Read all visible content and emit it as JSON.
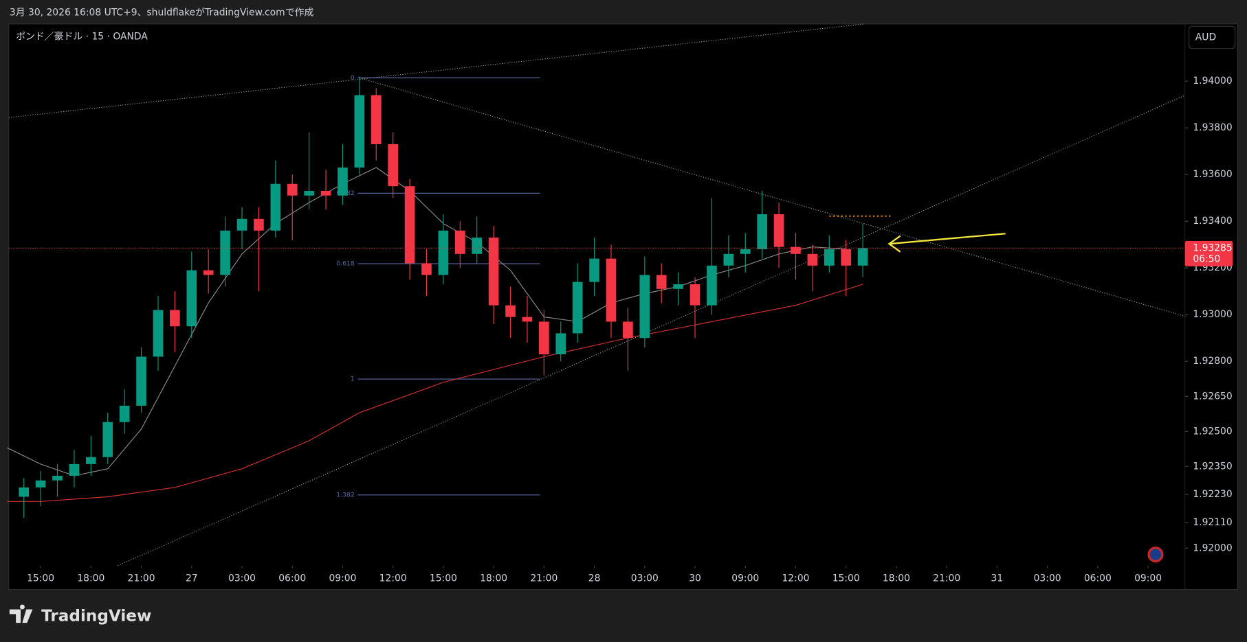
{
  "header": {
    "caption": "3月 30, 2026 16:08 UTC+9、shuldflakeがTradingView.comで作成"
  },
  "footer": {
    "logo": "TradingView"
  },
  "chart_data": {
    "type": "candlestick",
    "title": "ポンド／豪ドル · 15 · OANDA",
    "currency": "AUD",
    "up_color": "#089981",
    "down_color": "#f23645",
    "x": [
      -1,
      0,
      1,
      2,
      3,
      4,
      5,
      6,
      7,
      8,
      9,
      10,
      11,
      12,
      13,
      14,
      15,
      16,
      17,
      18,
      19,
      20,
      21,
      22,
      23,
      24,
      25,
      26,
      27,
      28,
      29,
      30,
      31,
      32,
      33,
      34,
      35,
      36,
      37,
      38,
      39,
      40,
      41,
      42,
      43,
      44,
      45,
      46,
      47,
      48,
      49
    ],
    "open": [
      1.9222,
      1.9226,
      1.9229,
      1.9231,
      1.9236,
      1.9239,
      1.9254,
      1.9261,
      1.9282,
      1.9302,
      1.9295,
      1.9319,
      1.9317,
      1.9336,
      1.9341,
      1.9336,
      1.9356,
      1.9351,
      1.9353,
      1.9351,
      1.9363,
      1.9394,
      1.9373,
      1.9355,
      1.9322,
      1.9317,
      1.9336,
      1.9326,
      1.9333,
      1.9304,
      1.9299,
      1.9297,
      1.9283,
      1.9292,
      1.9314,
      1.9324,
      1.9297,
      1.929,
      1.9317,
      1.9311,
      1.9313,
      1.9304,
      1.9321,
      1.9326,
      1.9328,
      1.9343,
      1.9329,
      1.9326,
      1.9321,
      1.9328,
      1.9321
    ],
    "high": [
      1.923,
      1.9233,
      1.9236,
      1.9242,
      1.9248,
      1.9258,
      1.9268,
      1.9286,
      1.9308,
      1.931,
      1.9327,
      1.9328,
      1.9342,
      1.9346,
      1.9346,
      1.9366,
      1.936,
      1.9378,
      1.9362,
      1.9373,
      1.9402,
      1.9397,
      1.9378,
      1.9358,
      1.9328,
      1.9343,
      1.934,
      1.9342,
      1.9338,
      1.9312,
      1.9308,
      1.9302,
      1.9297,
      1.9322,
      1.9333,
      1.933,
      1.9303,
      1.9325,
      1.9322,
      1.9318,
      1.9316,
      1.935,
      1.9334,
      1.9335,
      1.9353,
      1.9348,
      1.9335,
      1.933,
      1.9334,
      1.9332,
      1.9339
    ],
    "low": [
      1.9213,
      1.9218,
      1.9222,
      1.9226,
      1.9231,
      1.9236,
      1.9249,
      1.9258,
      1.9276,
      1.9284,
      1.929,
      1.9309,
      1.9312,
      1.9328,
      1.931,
      1.9333,
      1.9332,
      1.9345,
      1.9345,
      1.9347,
      1.936,
      1.9366,
      1.935,
      1.9315,
      1.9308,
      1.9313,
      1.932,
      1.9322,
      1.9296,
      1.929,
      1.9288,
      1.9274,
      1.928,
      1.9288,
      1.9308,
      1.929,
      1.9276,
      1.9286,
      1.9305,
      1.9304,
      1.929,
      1.93,
      1.9316,
      1.9318,
      1.9324,
      1.932,
      1.9315,
      1.931,
      1.9318,
      1.9308,
      1.9316
    ],
    "close": [
      1.9226,
      1.9229,
      1.9231,
      1.9236,
      1.9239,
      1.9254,
      1.9261,
      1.9282,
      1.9302,
      1.9295,
      1.9319,
      1.9317,
      1.9336,
      1.9341,
      1.9336,
      1.9356,
      1.9351,
      1.9353,
      1.9351,
      1.9363,
      1.9394,
      1.9373,
      1.9355,
      1.9322,
      1.9317,
      1.9336,
      1.9326,
      1.9333,
      1.9304,
      1.9299,
      1.9297,
      1.9283,
      1.9292,
      1.9314,
      1.9324,
      1.9297,
      1.929,
      1.9317,
      1.9311,
      1.9313,
      1.9304,
      1.9321,
      1.9326,
      1.9328,
      1.9343,
      1.9329,
      1.9326,
      1.9321,
      1.9328,
      1.9321,
      1.93285
    ],
    "moving_averages": [
      {
        "color": "#8a8a8a",
        "x": [
          -2,
          0,
          2,
          4,
          6,
          8,
          10,
          12,
          14,
          16,
          18,
          20,
          22,
          24,
          26,
          28,
          30,
          32,
          34,
          36,
          38,
          40,
          42,
          44,
          46,
          48
        ],
        "values": [
          1.9243,
          1.9236,
          1.9231,
          1.9234,
          1.9251,
          1.9278,
          1.9305,
          1.9326,
          1.9339,
          1.9348,
          1.9356,
          1.9363,
          1.9353,
          1.9339,
          1.9331,
          1.9319,
          1.9299,
          1.9297,
          1.9305,
          1.9309,
          1.9312,
          1.9317,
          1.9321,
          1.9326,
          1.9329,
          1.9328
        ]
      },
      {
        "color": "#d32f2f",
        "x": [
          -2,
          0,
          4,
          8,
          12,
          16,
          19,
          24,
          30,
          35,
          40,
          45,
          49
        ],
        "values": [
          1.922,
          1.922,
          1.9222,
          1.9226,
          1.9234,
          1.9246,
          1.9258,
          1.9271,
          1.9282,
          1.929,
          1.9297,
          1.9304,
          1.9313
        ]
      }
    ],
    "fib": {
      "color": "#5b6aa8",
      "x": [
        18.9,
        29.75
      ],
      "ratios": [
        0,
        0.382,
        0.618,
        1,
        1.382
      ],
      "prices": [
        1.94014,
        1.9352,
        1.93218,
        1.92724,
        1.92228
      ]
    },
    "trendlines": [
      {
        "color": "#9a9a9a",
        "x": [
          -1.9,
          49.1
        ],
        "values": [
          1.93844,
          1.94245
        ]
      },
      {
        "color": "#9a9a9a",
        "x": [
          19.0,
          68.2
        ],
        "values": [
          1.94014,
          1.92993
        ]
      },
      {
        "color": "#9a9a9a",
        "x": [
          4.6,
          68.2
        ],
        "values": [
          1.91925,
          1.93939
        ]
      }
    ],
    "level_line": {
      "color": "#ff9800",
      "x": [
        47.0,
        50.7
      ],
      "value": 1.93422
    },
    "arrow": {
      "color": "#f5e63b",
      "x": [
        57.5,
        50.57
      ],
      "values": [
        1.93347,
        1.93303
      ]
    },
    "last_price": {
      "value": 1.93285,
      "countdown": "06:50",
      "color": "#f23645"
    },
    "xlim": [
      -1.9,
      68.2
    ],
    "ylim": [
      1.91925,
      1.94245
    ],
    "xticks": [
      {
        "value": 0,
        "label": "15:00"
      },
      {
        "value": 3,
        "label": "18:00"
      },
      {
        "value": 6,
        "label": "21:00"
      },
      {
        "value": 9,
        "label": "27"
      },
      {
        "value": 12,
        "label": "03:00"
      },
      {
        "value": 15,
        "label": "06:00"
      },
      {
        "value": 18,
        "label": "09:00"
      },
      {
        "value": 21,
        "label": "12:00"
      },
      {
        "value": 24,
        "label": "15:00"
      },
      {
        "value": 27,
        "label": "18:00"
      },
      {
        "value": 30,
        "label": "21:00"
      },
      {
        "value": 33,
        "label": "28"
      },
      {
        "value": 36,
        "label": "03:00"
      },
      {
        "value": 39,
        "label": "30"
      },
      {
        "value": 42,
        "label": "09:00"
      },
      {
        "value": 45,
        "label": "12:00"
      },
      {
        "value": 48,
        "label": "15:00"
      },
      {
        "value": 51,
        "label": "18:00"
      },
      {
        "value": 54,
        "label": "21:00"
      },
      {
        "value": 57,
        "label": "31"
      },
      {
        "value": 60,
        "label": "03:00"
      },
      {
        "value": 63,
        "label": "06:00"
      },
      {
        "value": 66,
        "label": "09:00"
      }
    ],
    "yticks": [
      {
        "value": 1.94,
        "label": "1.94000"
      },
      {
        "value": 1.938,
        "label": "1.93800"
      },
      {
        "value": 1.936,
        "label": "1.93600"
      },
      {
        "value": 1.934,
        "label": "1.93400"
      },
      {
        "value": 1.932,
        "label": "1.93200"
      },
      {
        "value": 1.93,
        "label": "1.93000"
      },
      {
        "value": 1.928,
        "label": "1.92800"
      },
      {
        "value": 1.9265,
        "label": "1.92650"
      },
      {
        "value": 1.925,
        "label": "1.92500"
      },
      {
        "value": 1.9235,
        "label": "1.92350"
      },
      {
        "value": 1.9223,
        "label": "1.92230"
      },
      {
        "value": 1.9211,
        "label": "1.92110"
      },
      {
        "value": 1.92,
        "label": "1.92000"
      }
    ],
    "grid": false
  }
}
